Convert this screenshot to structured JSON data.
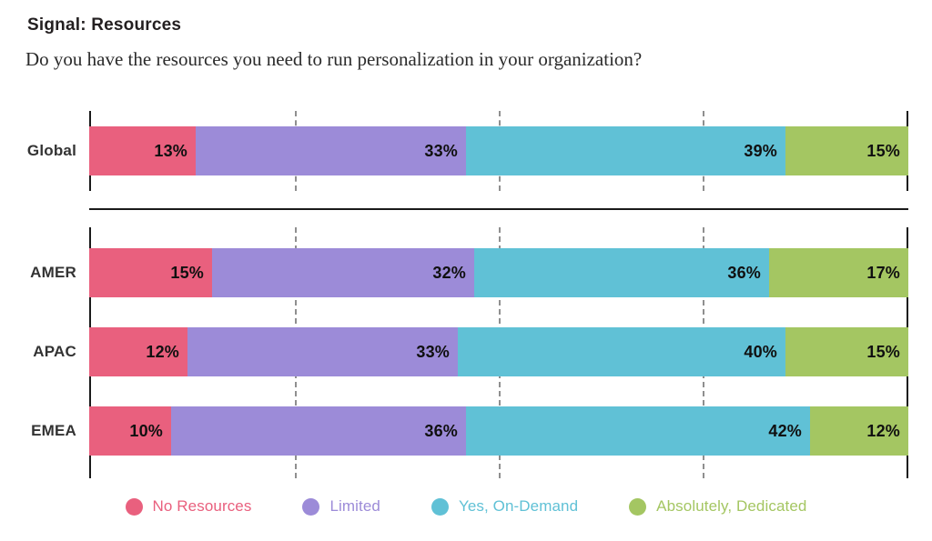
{
  "header": {
    "title": "Signal: Resources",
    "question": "Do you have the resources you need to run personalization in your organization?"
  },
  "chart_data": {
    "type": "bar",
    "variant": "horizontal-stacked",
    "unit": "%",
    "xlim": [
      0,
      100
    ],
    "gridlines_at_percent": [
      25,
      50,
      75
    ],
    "grid_style": "dashed-vertical",
    "legend_position": "bottom",
    "value_label_suffix": "%",
    "series": [
      {
        "key": "no-resources",
        "name": "No Resources",
        "color": "#E9607E"
      },
      {
        "key": "limited",
        "name": "Limited",
        "color": "#9C8BD8"
      },
      {
        "key": "on-demand",
        "name": "Yes, On-Demand",
        "color": "#60C1D6"
      },
      {
        "key": "dedicated",
        "name": "Absolutely, Dedicated",
        "color": "#A4C662"
      }
    ],
    "sections": [
      {
        "name": "global",
        "rows": [
          {
            "label": "Global",
            "values": [
              13,
              33,
              39,
              15
            ]
          }
        ]
      },
      {
        "name": "regions",
        "rows": [
          {
            "label": "AMER",
            "values": [
              15,
              32,
              36,
              17
            ]
          },
          {
            "label": "APAC",
            "values": [
              12,
              33,
              40,
              15
            ]
          },
          {
            "label": "EMEA",
            "values": [
              10,
              36,
              42,
              12
            ]
          }
        ]
      }
    ]
  }
}
